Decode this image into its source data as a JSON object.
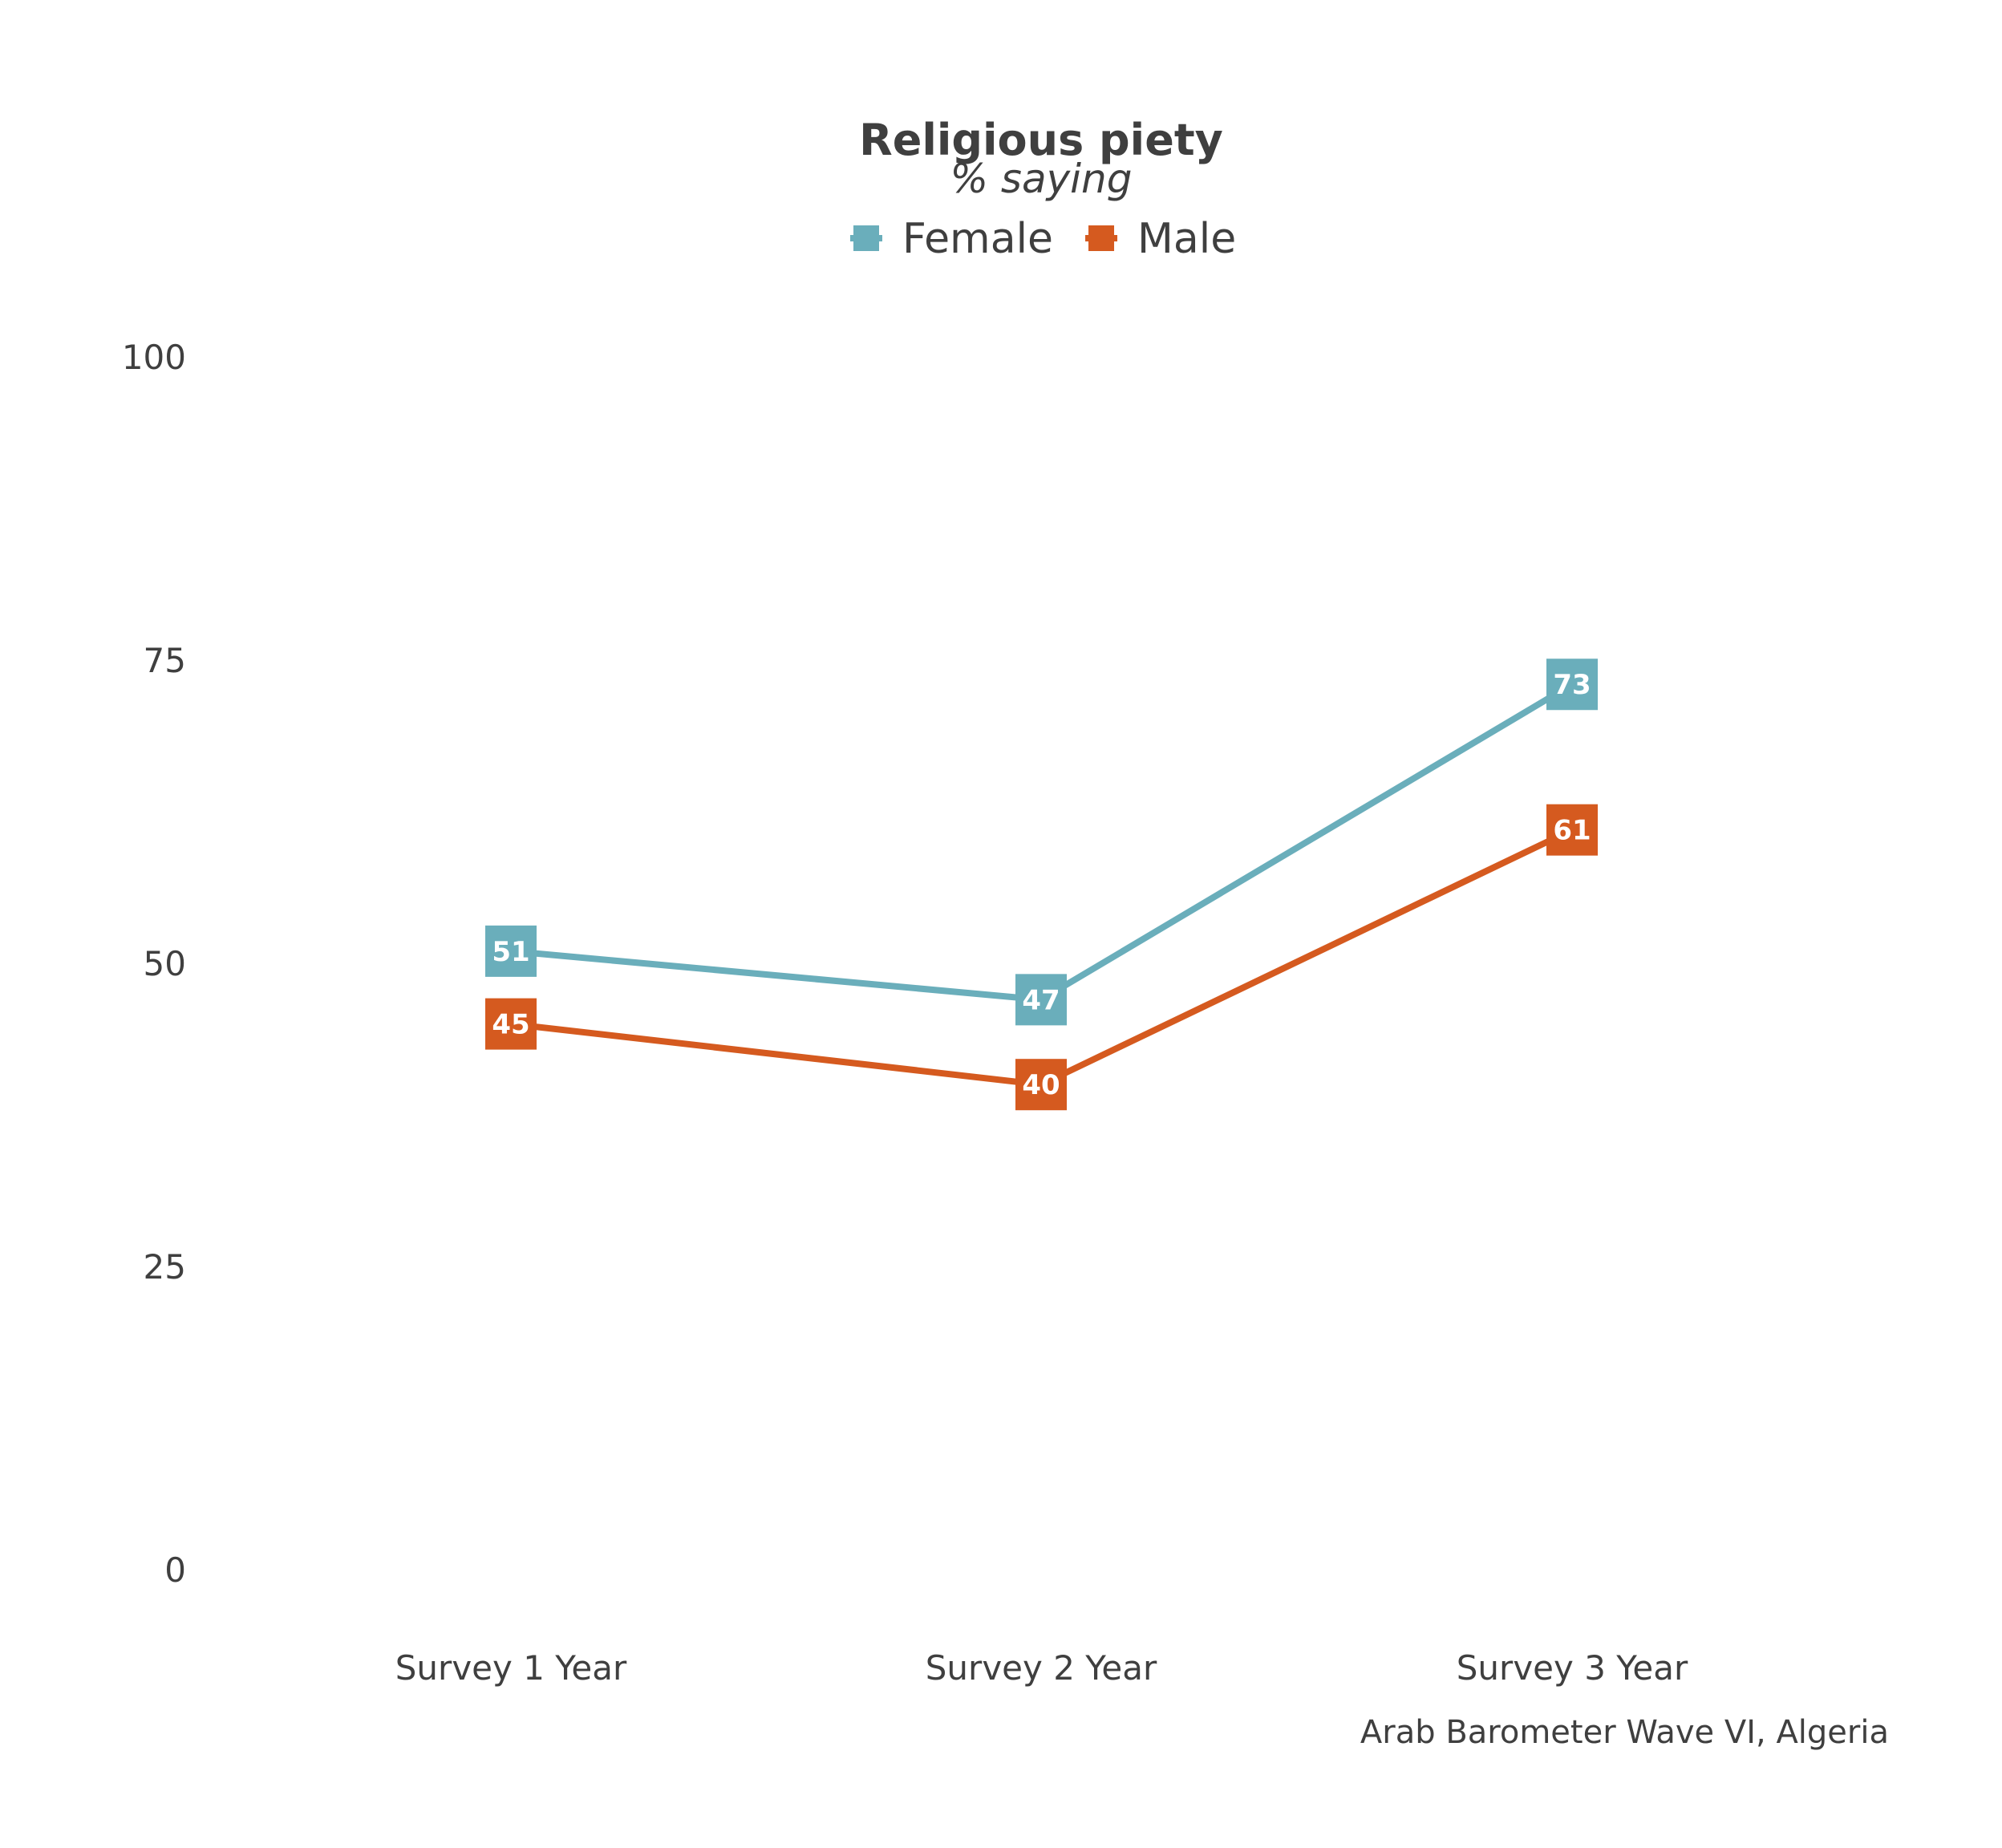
{
  "chart_data": {
    "type": "line",
    "title": "Religious piety",
    "subtitle": "% saying",
    "caption": "Arab Barometer Wave VI, Algeria",
    "categories": [
      "Survey 1 Year",
      "Survey 2 Year",
      "Survey 3 Year"
    ],
    "series": [
      {
        "name": "Female",
        "color": "#6aaebb",
        "values": [
          51,
          47,
          73
        ]
      },
      {
        "name": "Male",
        "color": "#d55a1f",
        "values": [
          45,
          40,
          61
        ]
      }
    ],
    "ylim": [
      0,
      100
    ],
    "yticks": [
      "0",
      "25",
      "50",
      "75",
      "100"
    ],
    "legend_position": "top",
    "grid": false,
    "data_labels": true
  }
}
